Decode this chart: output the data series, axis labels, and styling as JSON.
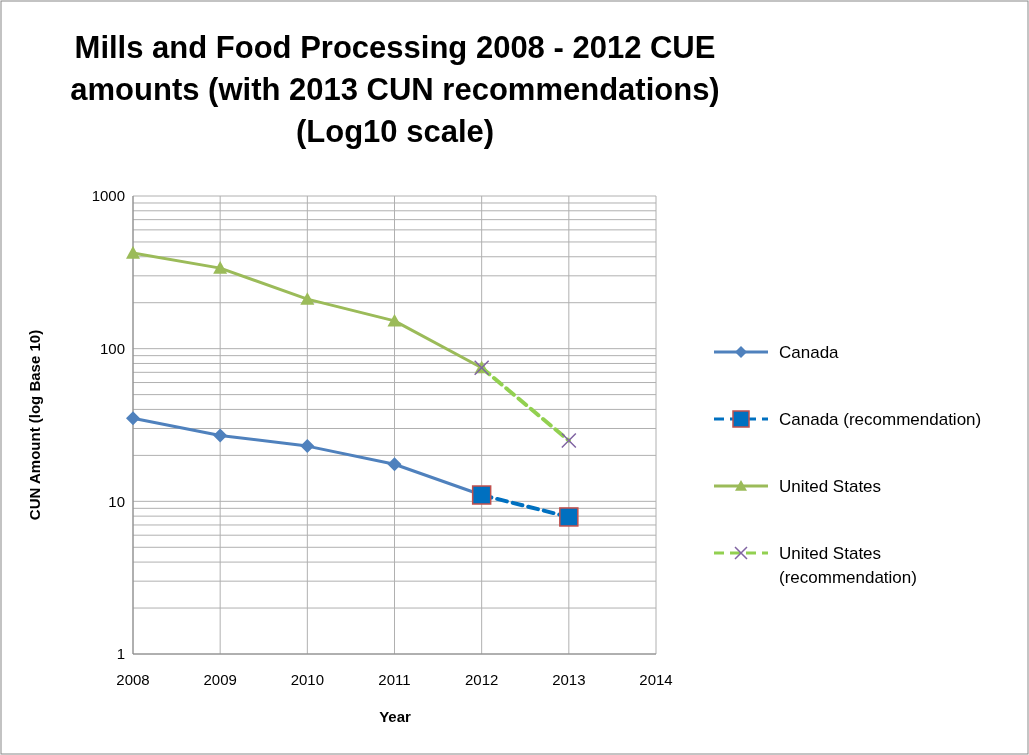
{
  "chart_data": {
    "type": "line",
    "title": "Mills and Food Processing 2008 - 2012 CUE amounts (with 2013 CUN recommendations) (Log10 scale)",
    "xlabel": "Year",
    "ylabel": "CUN Amount (log Base 10)",
    "log": "y",
    "grid": true,
    "legend": "right",
    "xlim": [
      2008,
      2014
    ],
    "xticks": [
      2008,
      2009,
      2010,
      2011,
      2012,
      2013,
      2014
    ],
    "ylim": [
      1,
      1000
    ],
    "yticks": [
      1,
      {
        "value": 2,
        "label": null
      },
      {
        "value": 3,
        "label": null
      },
      {
        "value": 4,
        "label": null
      },
      {
        "value": 5,
        "label": null
      },
      {
        "value": 6,
        "label": null
      },
      {
        "value": 7,
        "label": null
      },
      {
        "value": 8,
        "label": null
      },
      {
        "value": 9,
        "label": null
      },
      10,
      {
        "value": 20,
        "label": null
      },
      {
        "value": 30,
        "label": null
      },
      {
        "value": 40,
        "label": null
      },
      {
        "value": 50,
        "label": null
      },
      {
        "value": 60,
        "label": null
      },
      {
        "value": 70,
        "label": null
      },
      {
        "value": 80,
        "label": null
      },
      {
        "value": 90,
        "label": null
      },
      100,
      {
        "value": 200,
        "label": null
      },
      {
        "value": 300,
        "label": null
      },
      {
        "value": 400,
        "label": null
      },
      {
        "value": 500,
        "label": null
      },
      {
        "value": 600,
        "label": null
      },
      {
        "value": 700,
        "label": null
      },
      {
        "value": 800,
        "label": null
      },
      {
        "value": 900,
        "label": null
      },
      1000
    ],
    "series": [
      {
        "name": "Canada",
        "color": "#4f81bd",
        "marker": "diamond",
        "line_style": "solid",
        "x": [
          2008,
          2009,
          2010,
          2011,
          2012
        ],
        "values": [
          35,
          27,
          23,
          17.5,
          11
        ]
      },
      {
        "name": "Canada (recommendation)",
        "color": "#0070c0",
        "marker": "square",
        "line_style": "dashed",
        "x": [
          2012,
          2013
        ],
        "values": [
          11,
          7.9
        ]
      },
      {
        "name": "United States",
        "color": "#9bbb59",
        "marker": "triangle",
        "line_style": "solid",
        "x": [
          2008,
          2009,
          2010,
          2011,
          2012
        ],
        "values": [
          423,
          337,
          211,
          152,
          75
        ]
      },
      {
        "name": "United States (recommendation)",
        "color": "#92d050",
        "marker": "cross",
        "line_style": "dashed",
        "x": [
          2012,
          2013
        ],
        "values": [
          75,
          25
        ]
      }
    ]
  }
}
